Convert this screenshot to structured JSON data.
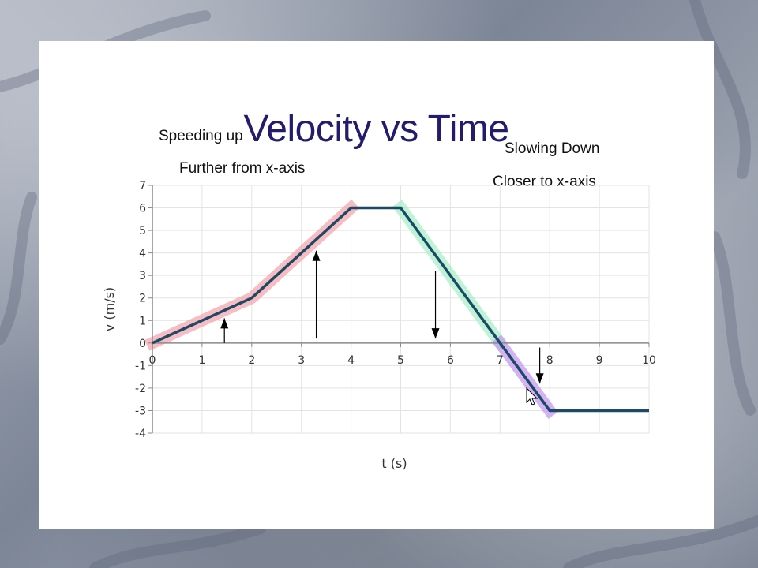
{
  "slide": {
    "title": "Velocity vs Time",
    "notes": {
      "speeding_up": "Speeding up",
      "further": "Further from x-axis",
      "slowing_down": "Slowing Down",
      "closer": "Closer to x-axis"
    }
  },
  "colors": {
    "title": "#221b6e",
    "line": "#1c4a66",
    "highlight_speed_up": "#f4a7ad",
    "highlight_slow_down": "#a8efc8",
    "highlight_speed_up_2": "#c59af0",
    "grid": "#e3e3e3"
  },
  "chart_data": {
    "type": "line",
    "title": "Velocity vs Time",
    "xlabel": "t (s)",
    "ylabel": "v (m/s)",
    "xlim": [
      0,
      10
    ],
    "ylim": [
      -4,
      7
    ],
    "xticks": [
      0,
      1,
      2,
      3,
      4,
      5,
      6,
      7,
      8,
      9,
      10
    ],
    "yticks": [
      -4,
      -3,
      -2,
      -1,
      0,
      1,
      2,
      3,
      4,
      5,
      6,
      7
    ],
    "grid": true,
    "series": [
      {
        "x": [
          0,
          2,
          4,
          5,
          7,
          8,
          10
        ],
        "y": [
          0,
          2,
          6,
          6,
          0,
          -3,
          -3
        ]
      }
    ],
    "highlights": [
      {
        "x": [
          0,
          4
        ],
        "color": "#f4a7ad"
      },
      {
        "x": [
          5,
          7
        ],
        "color": "#a8efc8"
      },
      {
        "x": [
          7,
          8
        ],
        "color": "#c59af0"
      }
    ],
    "arrows": [
      {
        "x": 1.45,
        "from": 0,
        "to": 1.1,
        "direction": "up"
      },
      {
        "x": 3.3,
        "from": 0.2,
        "to": 4.1,
        "direction": "up"
      },
      {
        "x": 5.7,
        "from": 3.2,
        "to": 0.2,
        "direction": "down"
      },
      {
        "x": 7.8,
        "from": -0.2,
        "to": -1.8,
        "direction": "down"
      }
    ]
  }
}
